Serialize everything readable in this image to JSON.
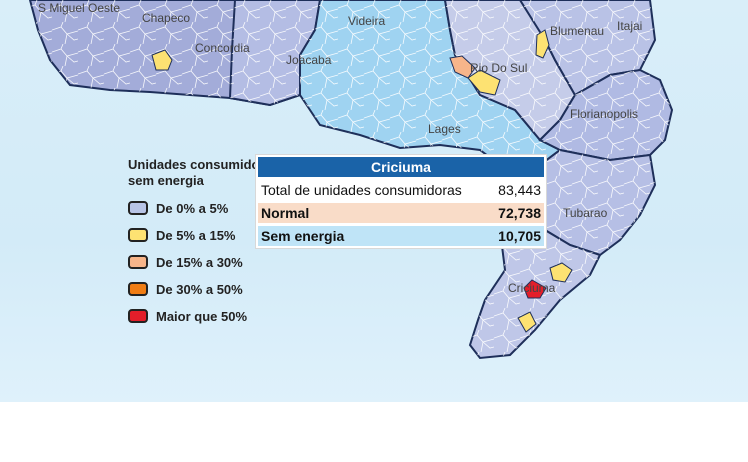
{
  "map": {
    "cities": [
      "S Miguel Oeste",
      "Chapeco",
      "Concordia",
      "Joacaba",
      "Videira",
      "Blumenau",
      "Itajai",
      "Rio Do Sul",
      "Lages",
      "Florianopolis",
      "Tubarao",
      "Criciuma"
    ]
  },
  "legend": {
    "title": "Unidades consumidoras sem energia",
    "items": [
      {
        "label": "De 0% a 5%",
        "color": "#b8c4e6"
      },
      {
        "label": "De 5% a 15%",
        "color": "#fde272"
      },
      {
        "label": "De 15% a 30%",
        "color": "#f7b58a"
      },
      {
        "label": "De 30% a 50%",
        "color": "#f07d14"
      },
      {
        "label": "Maior que 50%",
        "color": "#e31e2a"
      }
    ]
  },
  "tooltip": {
    "title": "Criciuma",
    "rows": [
      {
        "label": "Total de unidades consumidoras",
        "value": "83,443"
      },
      {
        "label": "Normal",
        "value": "72,738"
      },
      {
        "label": "Sem energia",
        "value": "10,705"
      }
    ]
  }
}
